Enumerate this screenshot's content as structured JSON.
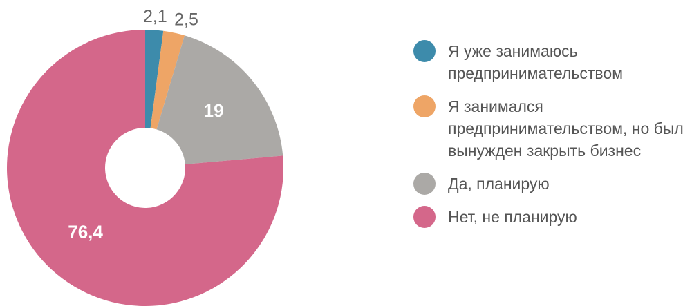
{
  "chart_data": {
    "type": "pie",
    "categories": [
      "Я уже занимаюсь предпринимательством",
      "Я занимался предпринимательством, но был вынужден закрыть бизнес",
      "Да, планирую",
      "Нет, не планирую"
    ],
    "values": [
      2.1,
      2.5,
      19,
      76.4
    ],
    "value_labels": [
      "2,1",
      "2,5",
      "19",
      "76,4"
    ],
    "colors": [
      "#3d8bab",
      "#eea566",
      "#aba9a6",
      "#d4678a"
    ],
    "donut": true,
    "legend": "right"
  }
}
